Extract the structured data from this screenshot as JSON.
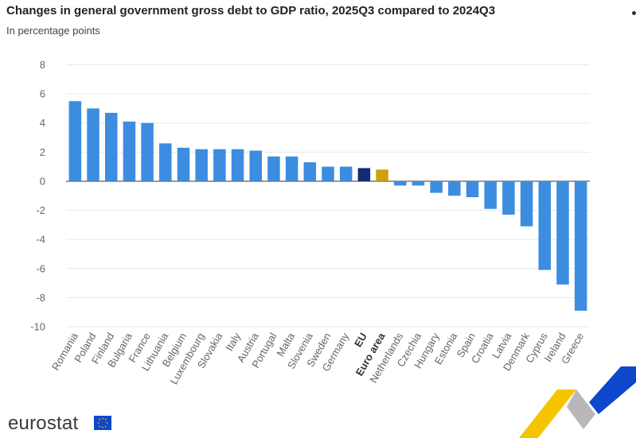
{
  "title": "Changes in general government gross debt to GDP ratio, 2025Q3 compared to 2024Q3",
  "subtitle": "In percentage points",
  "logo": {
    "text": "eurostat",
    "icon": "eu-flag-icon"
  },
  "colors": {
    "bar": "#3c8de0",
    "eu": "#132b74",
    "euro_area": "#c9a30a",
    "grid": "#e3e8ef",
    "axis_text": "#666666"
  },
  "chart_data": {
    "type": "bar",
    "title": "Changes in general government gross debt to GDP ratio, 2025Q3 compared to 2024Q3",
    "subtitle": "In percentage points",
    "categories": [
      "Romania",
      "Poland",
      "Finland",
      "Bulgaria",
      "France",
      "Lithuania",
      "Belgium",
      "Luxembourg",
      "Slovakia",
      "Italy",
      "Austria",
      "Portugal",
      "Malta",
      "Slovenia",
      "Sweden",
      "Germany",
      "EU",
      "Euro area",
      "Netherlands",
      "Czechia",
      "Hungary",
      "Estonia",
      "Spain",
      "Croatia",
      "Latvia",
      "Denmark",
      "Cyprus",
      "Ireland",
      "Greece"
    ],
    "values": [
      5.5,
      5.0,
      4.7,
      4.1,
      4.0,
      2.6,
      2.3,
      2.2,
      2.2,
      2.2,
      2.1,
      1.7,
      1.7,
      1.3,
      1.0,
      1.0,
      0.9,
      0.8,
      -0.3,
      -0.3,
      -0.8,
      -1.0,
      -1.1,
      -1.9,
      -2.3,
      -3.1,
      -6.1,
      -7.1,
      -8.9
    ],
    "highlight": {
      "EU": "#132b74",
      "Euro area": "#c9a30a"
    },
    "bold_categories": [
      "EU",
      "Euro area"
    ],
    "yticks": [
      8,
      6,
      4,
      2,
      0,
      -2,
      -4,
      -6,
      -8,
      -10
    ],
    "ylim": [
      -10,
      8
    ],
    "grid": true,
    "legend": "none"
  }
}
